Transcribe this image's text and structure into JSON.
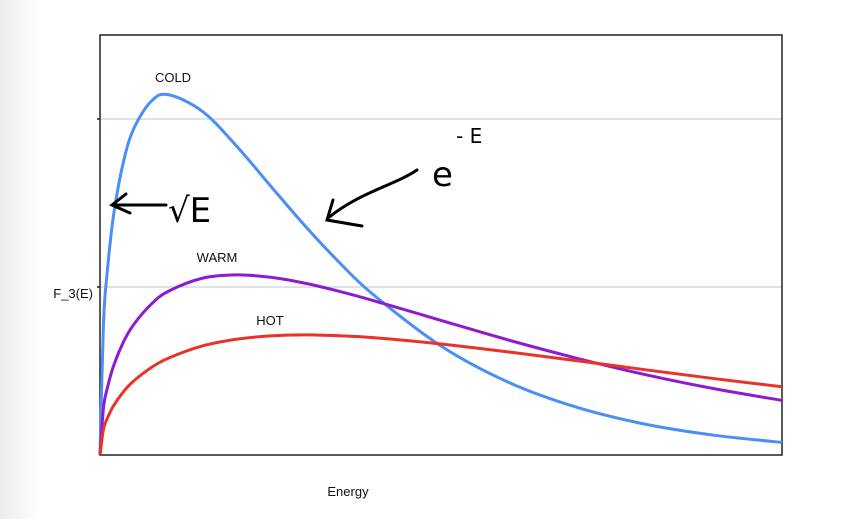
{
  "chart_data": {
    "type": "line",
    "title": "",
    "xlabel": "Energy",
    "ylabel": "F_3(E)",
    "xlim": [
      0,
      10
    ],
    "ylim": [
      0,
      2.5
    ],
    "grid": {
      "y": true,
      "x": false,
      "y_gridlines": [
        1,
        2
      ]
    },
    "legend": "none",
    "x": [
      0,
      0.05,
      0.1,
      0.2,
      0.35,
      0.5,
      0.75,
      1,
      1.5,
      2,
      2.5,
      3,
      3.5,
      4,
      5,
      6,
      7,
      8,
      9,
      10
    ],
    "series": [
      {
        "name": "COLD",
        "color": "#4a8ff5",
        "values": [
          0,
          0.771,
          1.064,
          1.431,
          1.756,
          1.947,
          2.105,
          2.145,
          2.046,
          1.84,
          1.602,
          1.367,
          1.15,
          0.957,
          0.649,
          0.431,
          0.283,
          0.183,
          0.118,
          0.075
        ]
      },
      {
        "name": "WARM",
        "color": "#8e1ccf",
        "values": [
          0,
          0.276,
          0.386,
          0.532,
          0.678,
          0.78,
          0.897,
          0.974,
          1.052,
          1.072,
          1.058,
          1.023,
          0.975,
          0.92,
          0.801,
          0.683,
          0.575,
          0.478,
          0.395,
          0.325
        ]
      },
      {
        "name": "HOT",
        "color": "#e8322a",
        "values": [
          0,
          0.151,
          0.212,
          0.294,
          0.38,
          0.443,
          0.52,
          0.576,
          0.649,
          0.689,
          0.709,
          0.715,
          0.71,
          0.699,
          0.661,
          0.613,
          0.561,
          0.507,
          0.455,
          0.406
        ]
      }
    ],
    "annotations": {
      "sqrt": "√E",
      "exp_base": "e",
      "exp_power": "- E"
    }
  }
}
